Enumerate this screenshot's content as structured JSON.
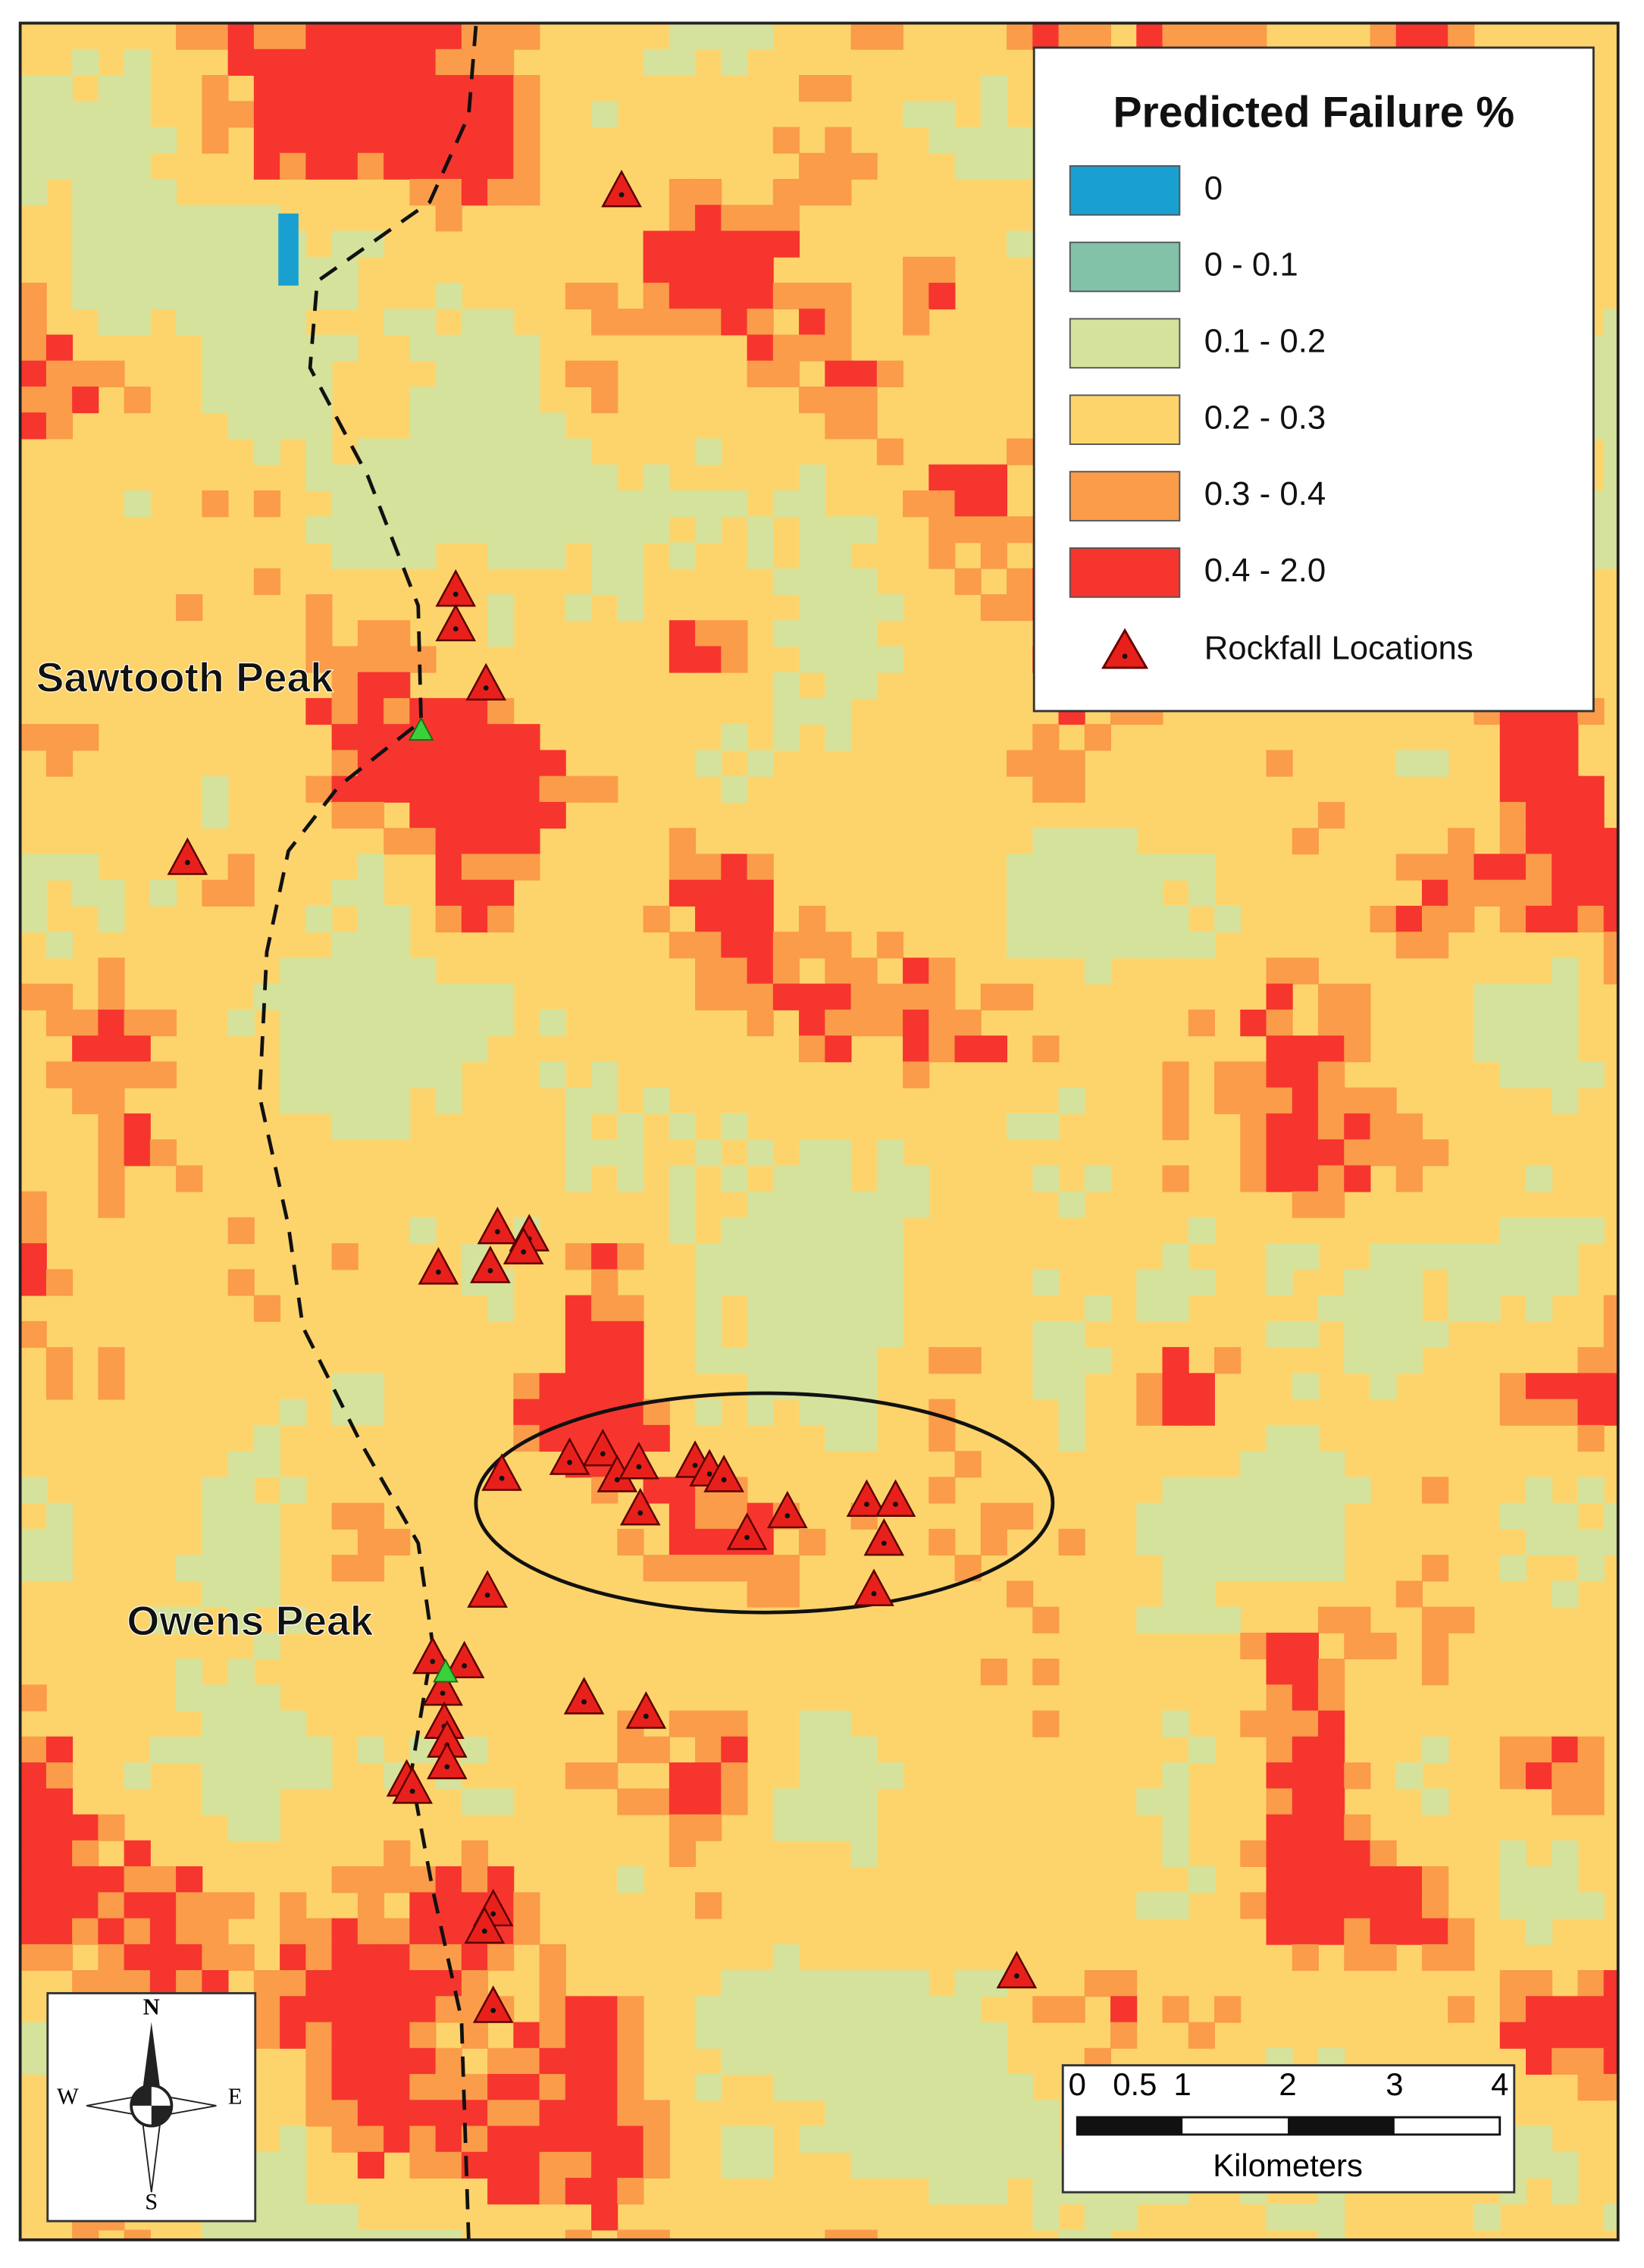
{
  "legend": {
    "title": "Predicted Failure %",
    "items": [
      {
        "label": "0",
        "color": "#1aa0d0"
      },
      {
        "label": "0 - 0.1",
        "color": "#82c2a8"
      },
      {
        "label": "0.1 - 0.2",
        "color": "#d5e29c"
      },
      {
        "label": "0.2 - 0.3",
        "color": "#fdd46c"
      },
      {
        "label": "0.3 - 0.4",
        "color": "#fa9c4a"
      },
      {
        "label": "0.4 - 2.0",
        "color": "#f6352e"
      }
    ],
    "rockfall_label": "Rockfall Locations"
  },
  "places": [
    "Sawtooth Peak",
    "Owens Peak"
  ],
  "compass": {
    "north": "N",
    "south": "S",
    "east": "E",
    "west": "W"
  },
  "scale_bar": {
    "labels": [
      "0",
      "0.5",
      "1",
      "2",
      "3",
      "4"
    ],
    "unit": "Kilometers"
  }
}
